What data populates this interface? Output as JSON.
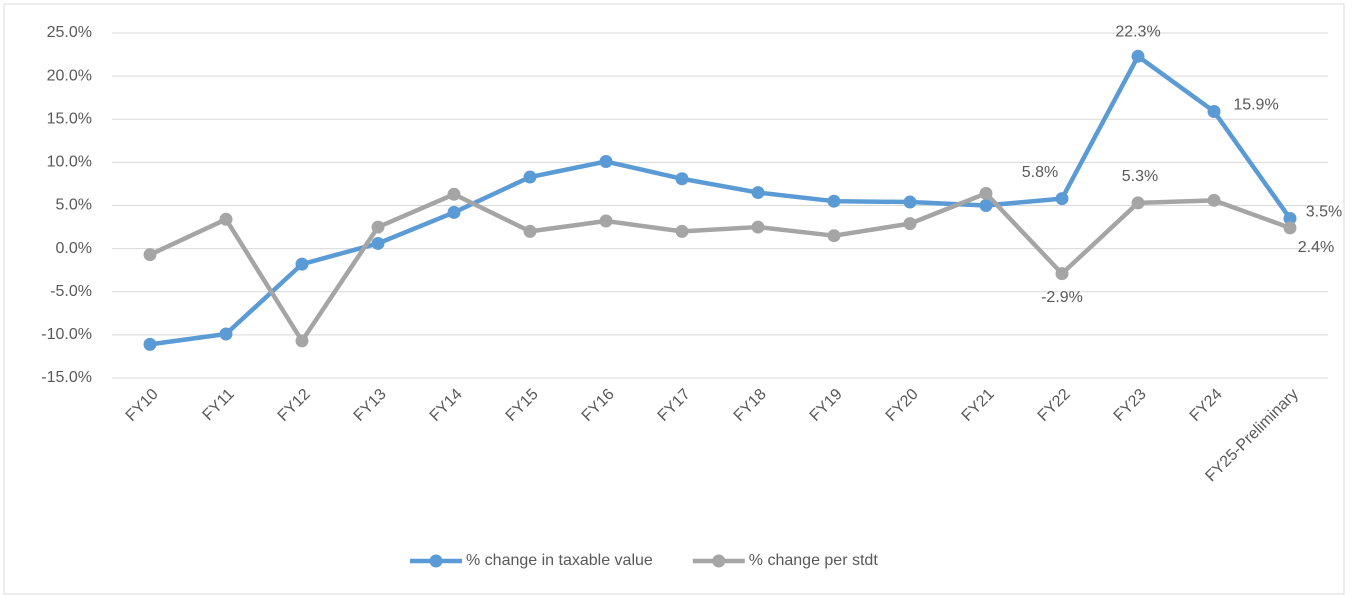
{
  "chart_data": {
    "type": "line",
    "categories": [
      "FY10",
      "FY11",
      "FY12",
      "FY13",
      "FY14",
      "FY15",
      "FY16",
      "FY17",
      "FY18",
      "FY19",
      "FY20",
      "FY21",
      "FY22",
      "FY23",
      "FY24",
      "FY25-Preliminary"
    ],
    "series": [
      {
        "name": "% change in taxable value",
        "color": "#5b9bd5",
        "values": [
          -11.1,
          -9.9,
          -1.8,
          0.6,
          4.2,
          8.3,
          10.1,
          8.1,
          6.5,
          5.5,
          5.4,
          5.0,
          5.8,
          22.3,
          15.9,
          3.5
        ],
        "value_labels": [
          null,
          null,
          null,
          null,
          null,
          null,
          null,
          null,
          null,
          null,
          null,
          null,
          "5.8%",
          "22.3%",
          "15.9%",
          "3.5%"
        ]
      },
      {
        "name": "% change per stdt",
        "color": "#a5a5a5",
        "values": [
          -0.7,
          3.4,
          -10.7,
          2.5,
          6.3,
          2.0,
          3.2,
          2.0,
          2.5,
          1.5,
          2.9,
          6.4,
          -2.9,
          5.3,
          5.6,
          2.4
        ],
        "value_labels": [
          null,
          null,
          null,
          null,
          null,
          null,
          null,
          null,
          null,
          null,
          null,
          null,
          "-2.9%",
          "5.3%",
          null,
          "2.4%"
        ]
      }
    ],
    "ylim": [
      -15,
      25
    ],
    "yticks": [
      {
        "value": -15,
        "label": "-15.0%"
      },
      {
        "value": -10,
        "label": "-10.0%"
      },
      {
        "value": -5,
        "label": "-5.0%"
      },
      {
        "value": 0,
        "label": "0.0%"
      },
      {
        "value": 5,
        "label": "5.0%"
      },
      {
        "value": 10,
        "label": "10.0%"
      },
      {
        "value": 15,
        "label": "15.0%"
      },
      {
        "value": 20,
        "label": "20.0%"
      },
      {
        "value": 25,
        "label": "25.0%"
      }
    ],
    "grid": true,
    "legend": "bottom"
  }
}
